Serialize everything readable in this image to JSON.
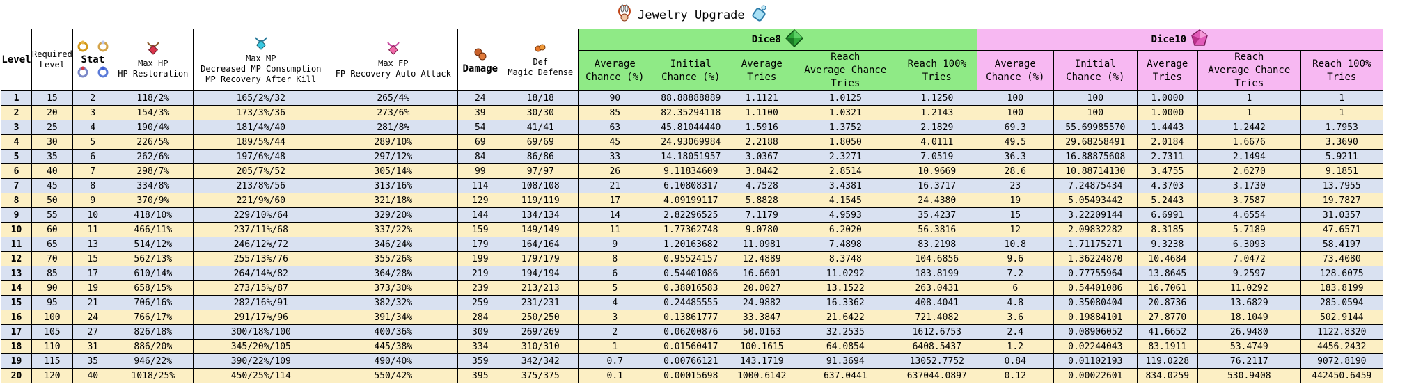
{
  "title": "Jewelry Upgrade",
  "headers": {
    "level": "Level",
    "required_level": [
      "Required",
      "Level"
    ],
    "stat": "Stat",
    "max_hp": [
      "Max HP",
      "HP Restoration"
    ],
    "max_mp": [
      "Max MP",
      "Decreased MP Consumption",
      "MP Recovery After Kill"
    ],
    "max_fp": [
      "Max FP",
      "FP Recovery Auto Attack"
    ],
    "damage": "Damage",
    "def": [
      "Def",
      "Magic Defense"
    ],
    "dice8": "Dice8",
    "dice10": "Dice10",
    "sub": [
      [
        "Average",
        "Chance (%)"
      ],
      [
        "Initial",
        "Chance (%)"
      ],
      [
        "Average",
        "Tries"
      ],
      [
        "Reach",
        "Average Chance",
        "Tries"
      ],
      [
        "Reach 100%",
        "Tries"
      ]
    ]
  },
  "colors": {
    "dice8": "#8fea86",
    "dice10": "#f7b8f2",
    "row_odd": "#d9e1f1",
    "row_even": "#fcefc4"
  },
  "icons": [
    "necklace-rabbit-icon",
    "necklace-blue-icon",
    "ring-gold-icon",
    "ring-silver-icon",
    "ring-ruby-icon",
    "ring-sapphire-icon",
    "necklace-red-icon",
    "necklace-green-icon",
    "necklace-pink-icon",
    "earring-icon",
    "earring-small-icon",
    "dice8-gem-icon",
    "dice10-gem-icon"
  ],
  "rows": [
    [
      "1",
      "15",
      "2",
      "118/2%",
      "165/2%/32",
      "265/4%",
      "24",
      "18/18",
      "90",
      "88.88888889",
      "1.1121",
      "1.0125",
      "1.1250",
      "100",
      "100",
      "1.0000",
      "1",
      "1"
    ],
    [
      "2",
      "20",
      "3",
      "154/3%",
      "173/3%/36",
      "273/6%",
      "39",
      "30/30",
      "85",
      "82.35294118",
      "1.1100",
      "1.0321",
      "1.2143",
      "100",
      "100",
      "1.0000",
      "1",
      "1"
    ],
    [
      "3",
      "25",
      "4",
      "190/4%",
      "181/4%/40",
      "281/8%",
      "54",
      "41/41",
      "63",
      "45.81044440",
      "1.5916",
      "1.3752",
      "2.1829",
      "69.3",
      "55.69985570",
      "1.4443",
      "1.2442",
      "1.7953"
    ],
    [
      "4",
      "30",
      "5",
      "226/5%",
      "189/5%/44",
      "289/10%",
      "69",
      "69/69",
      "45",
      "24.93069984",
      "2.2188",
      "1.8050",
      "4.0111",
      "49.5",
      "29.68258491",
      "2.0184",
      "1.6676",
      "3.3690"
    ],
    [
      "5",
      "35",
      "6",
      "262/6%",
      "197/6%/48",
      "297/12%",
      "84",
      "86/86",
      "33",
      "14.18051957",
      "3.0367",
      "2.3271",
      "7.0519",
      "36.3",
      "16.88875608",
      "2.7311",
      "2.1494",
      "5.9211"
    ],
    [
      "6",
      "40",
      "7",
      "298/7%",
      "205/7%/52",
      "305/14%",
      "99",
      "97/97",
      "26",
      "9.11834609",
      "3.8442",
      "2.8514",
      "10.9669",
      "28.6",
      "10.88714130",
      "3.4755",
      "2.6270",
      "9.1851"
    ],
    [
      "7",
      "45",
      "8",
      "334/8%",
      "213/8%/56",
      "313/16%",
      "114",
      "108/108",
      "21",
      "6.10808317",
      "4.7528",
      "3.4381",
      "16.3717",
      "23",
      "7.24875434",
      "4.3703",
      "3.1730",
      "13.7955"
    ],
    [
      "8",
      "50",
      "9",
      "370/9%",
      "221/9%/60",
      "321/18%",
      "129",
      "119/119",
      "17",
      "4.09199117",
      "5.8828",
      "4.1545",
      "24.4380",
      "19",
      "5.05493442",
      "5.2443",
      "3.7587",
      "19.7827"
    ],
    [
      "9",
      "55",
      "10",
      "418/10%",
      "229/10%/64",
      "329/20%",
      "144",
      "134/134",
      "14",
      "2.82296525",
      "7.1179",
      "4.9593",
      "35.4237",
      "15",
      "3.22209144",
      "6.6991",
      "4.6554",
      "31.0357"
    ],
    [
      "10",
      "60",
      "11",
      "466/11%",
      "237/11%/68",
      "337/22%",
      "159",
      "149/149",
      "11",
      "1.77362748",
      "9.0780",
      "6.2020",
      "56.3816",
      "12",
      "2.09832282",
      "8.3185",
      "5.7189",
      "47.6571"
    ],
    [
      "11",
      "65",
      "13",
      "514/12%",
      "246/12%/72",
      "346/24%",
      "179",
      "164/164",
      "9",
      "1.20163682",
      "11.0981",
      "7.4898",
      "83.2198",
      "10.8",
      "1.71175271",
      "9.3238",
      "6.3093",
      "58.4197"
    ],
    [
      "12",
      "70",
      "15",
      "562/13%",
      "255/13%/76",
      "355/26%",
      "199",
      "179/179",
      "8",
      "0.95524157",
      "12.4889",
      "8.3748",
      "104.6856",
      "9.6",
      "1.36224870",
      "10.4684",
      "7.0472",
      "73.4080"
    ],
    [
      "13",
      "85",
      "17",
      "610/14%",
      "264/14%/82",
      "364/28%",
      "219",
      "194/194",
      "6",
      "0.54401086",
      "16.6601",
      "11.0292",
      "183.8199",
      "7.2",
      "0.77755964",
      "13.8645",
      "9.2597",
      "128.6075"
    ],
    [
      "14",
      "90",
      "19",
      "658/15%",
      "273/15%/87",
      "373/30%",
      "239",
      "213/213",
      "5",
      "0.38016583",
      "20.0027",
      "13.1522",
      "263.0431",
      "6",
      "0.54401086",
      "16.7061",
      "11.0292",
      "183.8199"
    ],
    [
      "15",
      "95",
      "21",
      "706/16%",
      "282/16%/91",
      "382/32%",
      "259",
      "231/231",
      "4",
      "0.24485555",
      "24.9882",
      "16.3362",
      "408.4041",
      "4.8",
      "0.35080404",
      "20.8736",
      "13.6829",
      "285.0594"
    ],
    [
      "16",
      "100",
      "24",
      "766/17%",
      "291/17%/96",
      "391/34%",
      "284",
      "250/250",
      "3",
      "0.13861777",
      "33.3847",
      "21.6422",
      "721.4082",
      "3.6",
      "0.19884101",
      "27.8770",
      "18.1049",
      "502.9144"
    ],
    [
      "17",
      "105",
      "27",
      "826/18%",
      "300/18%/100",
      "400/36%",
      "309",
      "269/269",
      "2",
      "0.06200876",
      "50.0163",
      "32.2535",
      "1612.6753",
      "2.4",
      "0.08906052",
      "41.6652",
      "26.9480",
      "1122.8320"
    ],
    [
      "18",
      "110",
      "31",
      "886/20%",
      "345/20%/105",
      "445/38%",
      "334",
      "310/310",
      "1",
      "0.01560417",
      "100.1615",
      "64.0854",
      "6408.5437",
      "1.2",
      "0.02244043",
      "83.1911",
      "53.4749",
      "4456.2432"
    ],
    [
      "19",
      "115",
      "35",
      "946/22%",
      "390/22%/109",
      "490/40%",
      "359",
      "342/342",
      "0.7",
      "0.00766121",
      "143.1719",
      "91.3694",
      "13052.7752",
      "0.84",
      "0.01102193",
      "119.0228",
      "76.2117",
      "9072.8190"
    ],
    [
      "20",
      "120",
      "40",
      "1018/25%",
      "450/25%/114",
      "550/42%",
      "395",
      "375/375",
      "0.1",
      "0.00015698",
      "1000.6142",
      "637.0441",
      "637044.0897",
      "0.12",
      "0.00022601",
      "834.0259",
      "530.9408",
      "442450.6459"
    ]
  ]
}
